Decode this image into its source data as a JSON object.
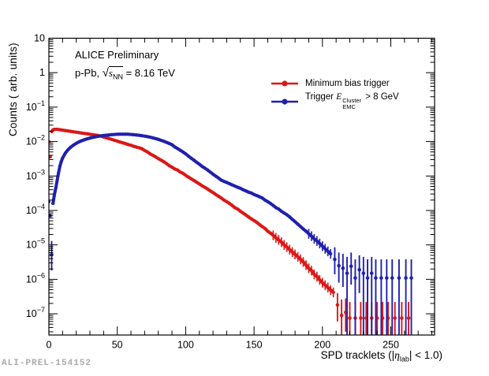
{
  "watermark": "ALI-PREL-154152",
  "annotations": {
    "line1": "ALICE Preliminary",
    "line2_prefix": "p-Pb, ",
    "sqrt_symbol": "√",
    "sqrt_arg": "s",
    "sqrt_sub": "NN",
    "line2_suffix": " = 8.16 TeV"
  },
  "legend": {
    "items": [
      {
        "label": "Minimum bias trigger",
        "color": "#dd1616"
      },
      {
        "prefix": "Trigger ",
        "symbol": "E",
        "sup": "Cluster",
        "sub": "EMC",
        "suffix": " > 8 GeV",
        "color": "#2020ae"
      }
    ]
  },
  "axes": {
    "x_title_prefix": "SPD tracklets (|",
    "x_title_eta": "η",
    "x_title_sub": "lab",
    "x_title_suffix": "| < 1.0)",
    "y_title": "Counts ( arb. units)"
  },
  "chart_data": {
    "type": "scatter",
    "xlabel": "SPD tracklets (|eta_lab| < 1.0)",
    "ylabel": "Counts ( arb. units)",
    "xlim": [
      0,
      282
    ],
    "ylog_min": 2.42e-08,
    "ylog_max": 10,
    "x_minor_step": 10,
    "x_ticks": [
      {
        "v": 0,
        "l": "0"
      },
      {
        "v": 50,
        "l": "50"
      },
      {
        "v": 100,
        "l": "100"
      },
      {
        "v": 150,
        "l": "150"
      },
      {
        "v": 200,
        "l": "200"
      },
      {
        "v": 250,
        "l": "250"
      }
    ],
    "y_ticks": [
      {
        "v": 10,
        "b": "10",
        "e": ""
      },
      {
        "v": 1,
        "b": "1",
        "e": ""
      },
      {
        "v": 0.1,
        "b": "10",
        "e": "−1"
      },
      {
        "v": 0.01,
        "b": "10",
        "e": "−2"
      },
      {
        "v": 0.001,
        "b": "10",
        "e": "−3"
      },
      {
        "v": 0.0001,
        "b": "10",
        "e": "−4"
      },
      {
        "v": 1e-05,
        "b": "10",
        "e": "−5"
      },
      {
        "v": 1e-06,
        "b": "10",
        "e": "−6"
      },
      {
        "v": 1e-07,
        "b": "10",
        "e": "−7"
      }
    ],
    "series": [
      {
        "name": "Minimum bias trigger",
        "color": "#dd1616",
        "head_isolated": 2,
        "points": [
          [
            0,
            0.01
          ],
          [
            1,
            0.0036
          ],
          [
            2,
            0.0195
          ],
          [
            3,
            0.022
          ],
          [
            4,
            0.0226
          ],
          [
            6,
            0.0227
          ],
          [
            8,
            0.0221
          ],
          [
            10,
            0.0215
          ],
          [
            12,
            0.0209
          ],
          [
            14,
            0.0203
          ],
          [
            16,
            0.0198
          ],
          [
            18,
            0.0192
          ],
          [
            20,
            0.0187
          ],
          [
            22,
            0.0182
          ],
          [
            24,
            0.0177
          ],
          [
            26,
            0.0172
          ],
          [
            28,
            0.0168
          ],
          [
            30,
            0.0163
          ],
          [
            32,
            0.0159
          ],
          [
            34,
            0.0154
          ],
          [
            36,
            0.015
          ],
          [
            38,
            0.0144
          ],
          [
            40,
            0.0136
          ],
          [
            42,
            0.0129
          ],
          [
            44,
            0.0122
          ],
          [
            46,
            0.0115
          ],
          [
            48,
            0.0109
          ],
          [
            50,
            0.0103
          ],
          [
            52,
            0.0097
          ],
          [
            54,
            0.0092
          ],
          [
            56,
            0.0087
          ],
          [
            58,
            0.0082
          ],
          [
            60,
            0.0078
          ],
          [
            62,
            0.0073
          ],
          [
            64,
            0.0069
          ],
          [
            66,
            0.0066
          ],
          [
            68,
            0.0062
          ],
          [
            70,
            0.0055
          ],
          [
            72,
            0.005
          ],
          [
            74,
            0.0044
          ],
          [
            76,
            0.004
          ],
          [
            78,
            0.0036
          ],
          [
            80,
            0.0032
          ],
          [
            82,
            0.0029
          ],
          [
            84,
            0.0026
          ],
          [
            86,
            0.0023
          ],
          [
            88,
            0.002
          ],
          [
            90,
            0.0018
          ],
          [
            92,
            0.0016
          ],
          [
            94,
            0.0015
          ],
          [
            96,
            0.0013
          ],
          [
            98,
            0.0012
          ],
          [
            100,
            0.00105
          ],
          [
            102,
            0.00093
          ],
          [
            104,
            0.00083
          ],
          [
            106,
            0.00074
          ],
          [
            108,
            0.00066
          ],
          [
            110,
            0.00059
          ],
          [
            112,
            0.00052
          ],
          [
            114,
            0.00047
          ],
          [
            116,
            0.00042
          ],
          [
            118,
            0.00037
          ],
          [
            120,
            0.00033
          ],
          [
            122,
            0.00029
          ],
          [
            124,
            0.00026
          ],
          [
            126,
            0.00023
          ],
          [
            128,
            0.0002
          ],
          [
            130,
            0.00018
          ],
          [
            132,
            0.00016
          ],
          [
            134,
            0.00014
          ],
          [
            136,
            0.00012
          ],
          [
            138,
            0.00011
          ],
          [
            140,
            9.5e-05
          ],
          [
            142,
            8.4e-05
          ],
          [
            144,
            7.4e-05
          ],
          [
            146,
            6.5e-05
          ],
          [
            148,
            5.7e-05
          ],
          [
            150,
            5.1e-05
          ],
          [
            152,
            4.5e-05
          ],
          [
            154,
            3.9e-05
          ],
          [
            156,
            3.4e-05
          ],
          [
            158,
            3e-05
          ],
          [
            160,
            2.5e-05
          ],
          [
            162,
            2.2e-05
          ],
          [
            164,
            1.9e-05
          ],
          [
            166,
            1.6e-05
          ],
          [
            168,
            1.4e-05
          ],
          [
            170,
            1.2e-05
          ],
          [
            172,
            1e-05
          ],
          [
            174,
            8.6e-06
          ],
          [
            176,
            7.3e-06
          ],
          [
            178,
            6.2e-06
          ],
          [
            180,
            5.3e-06
          ],
          [
            182,
            4.5e-06
          ],
          [
            184,
            3.8e-06
          ],
          [
            186,
            3.2e-06
          ],
          [
            188,
            2.6e-06
          ],
          [
            190,
            2.1e-06
          ],
          [
            192,
            1.8e-06
          ],
          [
            194,
            1.4e-06
          ],
          [
            196,
            1.2e-06
          ],
          [
            198,
            9.7e-07
          ],
          [
            200,
            8e-07
          ],
          [
            202,
            6.8e-07
          ],
          [
            204,
            5.8e-07
          ],
          [
            206,
            4.9e-07
          ],
          [
            208,
            4.2e-07
          ]
        ],
        "tail": [
          [
            211,
            1.8e-07,
            6e-08,
            4e-07
          ],
          [
            214,
            9e-08,
            2.5e-08,
            2.6e-07
          ],
          [
            217,
            1.1e-07,
            3e-08,
            2.8e-07
          ],
          [
            220,
            7.5e-08,
            2.5e-08,
            2.2e-07
          ],
          [
            224,
            7.5e-08,
            2.5e-08,
            2.2e-07
          ],
          [
            228,
            7.5e-08,
            2.5e-08,
            2.2e-07
          ],
          [
            232,
            7.5e-08,
            2.5e-08,
            2.2e-07
          ],
          [
            236,
            7.5e-08,
            2.5e-08,
            2.2e-07
          ],
          [
            240,
            7.5e-08,
            2.5e-08,
            2.2e-07
          ],
          [
            244,
            7.5e-08,
            2.5e-08,
            2.2e-07
          ],
          [
            248,
            7.5e-08,
            2.5e-08,
            2.2e-07
          ],
          [
            253,
            7.5e-08,
            2.5e-08,
            2.2e-07
          ],
          [
            258,
            7.5e-08,
            2.5e-08,
            2.2e-07
          ],
          [
            263,
            7.5e-08,
            2.5e-08,
            2.2e-07
          ]
        ]
      },
      {
        "name": "Trigger EMC Cluster > 8 GeV",
        "color": "#2020ae",
        "head_isolated": 2,
        "points": [
          [
            0,
            0.00018
          ],
          [
            1,
            7e-05
          ],
          [
            3,
            0.00016
          ],
          [
            4,
            0.00028
          ],
          [
            5,
            0.00044
          ],
          [
            6,
            0.00073
          ],
          [
            7,
            0.0012
          ],
          [
            8,
            0.0019
          ],
          [
            9,
            0.0026
          ],
          [
            10,
            0.0033
          ],
          [
            12,
            0.0046
          ],
          [
            14,
            0.0058
          ],
          [
            16,
            0.0069
          ],
          [
            18,
            0.0079
          ],
          [
            20,
            0.0089
          ],
          [
            22,
            0.0098
          ],
          [
            24,
            0.0106
          ],
          [
            26,
            0.0113
          ],
          [
            28,
            0.012
          ],
          [
            30,
            0.0126
          ],
          [
            32,
            0.0132
          ],
          [
            34,
            0.0137
          ],
          [
            36,
            0.0142
          ],
          [
            38,
            0.0146
          ],
          [
            40,
            0.015
          ],
          [
            42,
            0.0153
          ],
          [
            44,
            0.0156
          ],
          [
            46,
            0.0159
          ],
          [
            48,
            0.0161
          ],
          [
            50,
            0.0163
          ],
          [
            52,
            0.0164
          ],
          [
            54,
            0.0164
          ],
          [
            56,
            0.0164
          ],
          [
            58,
            0.0163
          ],
          [
            60,
            0.0161
          ],
          [
            62,
            0.0158
          ],
          [
            64,
            0.0155
          ],
          [
            66,
            0.0152
          ],
          [
            68,
            0.0148
          ],
          [
            70,
            0.0144
          ],
          [
            72,
            0.0139
          ],
          [
            74,
            0.0134
          ],
          [
            76,
            0.0128
          ],
          [
            78,
            0.0122
          ],
          [
            80,
            0.0116
          ],
          [
            82,
            0.0109
          ],
          [
            84,
            0.0102
          ],
          [
            86,
            0.0095
          ],
          [
            88,
            0.0088
          ],
          [
            90,
            0.0081
          ],
          [
            92,
            0.007
          ],
          [
            94,
            0.0063
          ],
          [
            96,
            0.0056
          ],
          [
            98,
            0.005
          ],
          [
            100,
            0.0044
          ],
          [
            102,
            0.0038
          ],
          [
            104,
            0.0033
          ],
          [
            106,
            0.0029
          ],
          [
            108,
            0.0025
          ],
          [
            110,
            0.0022
          ],
          [
            112,
            0.0019
          ],
          [
            114,
            0.0017
          ],
          [
            116,
            0.0015
          ],
          [
            118,
            0.0013
          ],
          [
            120,
            0.00113
          ],
          [
            122,
            0.00099
          ],
          [
            124,
            0.00087
          ],
          [
            126,
            0.00076
          ],
          [
            128,
            0.0007
          ],
          [
            130,
            0.00065
          ],
          [
            132,
            0.0006
          ],
          [
            134,
            0.00055
          ],
          [
            136,
            0.00051
          ],
          [
            138,
            0.00047
          ],
          [
            140,
            0.00044
          ],
          [
            142,
            0.0004
          ],
          [
            144,
            0.00037
          ],
          [
            146,
            0.00034
          ],
          [
            148,
            0.00032
          ],
          [
            150,
            0.00029
          ],
          [
            152,
            0.00027
          ],
          [
            154,
            0.00025
          ],
          [
            156,
            0.00023
          ],
          [
            158,
            0.0002
          ],
          [
            160,
            0.00018
          ],
          [
            162,
            0.00016
          ],
          [
            164,
            0.00014
          ],
          [
            166,
            0.00012
          ],
          [
            168,
            0.00011
          ],
          [
            170,
            9.5e-05
          ],
          [
            172,
            8.4e-05
          ],
          [
            174,
            7.5e-05
          ],
          [
            176,
            6.5e-05
          ],
          [
            178,
            5.5e-05
          ],
          [
            180,
            4.7e-05
          ],
          [
            182,
            4e-05
          ],
          [
            184,
            3.4e-05
          ],
          [
            186,
            2.9e-05
          ],
          [
            188,
            2.5e-05
          ],
          [
            190,
            2.1e-05
          ],
          [
            192,
            1.8e-05
          ],
          [
            194,
            1.5e-05
          ],
          [
            196,
            1.3e-05
          ],
          [
            198,
            1.1e-05
          ],
          [
            200,
            9.2e-06
          ],
          [
            202,
            7.7e-06
          ],
          [
            204,
            6.5e-06
          ],
          [
            206,
            5.5e-06
          ]
        ],
        "tail": [
          [
            2,
            5.2e-06,
            1.8e-06,
            1.3e-05
          ],
          [
            209,
            3.8e-06,
            1.4e-06,
            8.5e-06
          ],
          [
            212,
            2.5e-06,
            8e-07,
            6e-06
          ],
          [
            215,
            2.1e-06,
            6e-07,
            5.5e-06
          ],
          [
            218,
            1.5e-06,
            2.5e-08,
            4.5e-06
          ],
          [
            221,
            2.4e-06,
            7e-07,
            6e-06
          ],
          [
            224,
            1.1e-06,
            2.5e-08,
            3.8e-06
          ],
          [
            227,
            1.9e-06,
            4e-07,
            5e-06
          ],
          [
            230,
            1.5e-06,
            2.5e-08,
            4.5e-06
          ],
          [
            233,
            1.1e-06,
            2.5e-08,
            3.8e-06
          ],
          [
            236,
            1.5e-06,
            2.5e-08,
            4.5e-06
          ],
          [
            239,
            1.1e-06,
            2.5e-08,
            3.8e-06
          ],
          [
            243,
            1.1e-06,
            2.5e-08,
            3.8e-06
          ],
          [
            247,
            1.1e-06,
            2.5e-08,
            3.8e-06
          ],
          [
            251,
            1.1e-06,
            2.5e-08,
            3.8e-06
          ],
          [
            256,
            1.1e-06,
            2.5e-08,
            3.8e-06
          ],
          [
            261,
            1.1e-06,
            2.5e-08,
            3.8e-06
          ],
          [
            265,
            1.1e-06,
            2.5e-08,
            3.8e-06
          ]
        ]
      }
    ]
  }
}
